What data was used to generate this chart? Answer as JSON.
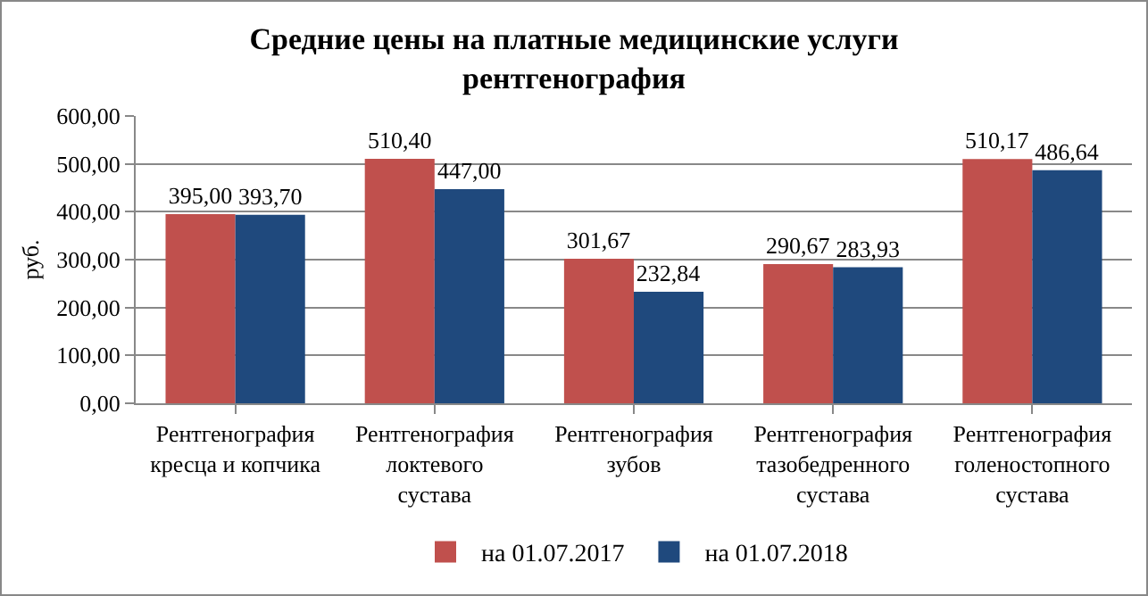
{
  "chart_data": {
    "type": "bar",
    "title": "Средние цены на платные медицинские услуги\nрентгенография",
    "ylabel": "руб.",
    "categories": [
      "Рентгенография\nкресца и копчика",
      "Рентгенография\nлоктевого\nсустава",
      "Рентгенография\nзубов",
      "Рентгенография\nтазобедренного\nсустава",
      "Рентгенография\nголеностопного\nсустава"
    ],
    "series": [
      {
        "name": "на 01.07.2017",
        "color": "#c0504d",
        "values": [
          395.0,
          510.4,
          301.67,
          290.67,
          510.17
        ],
        "value_labels": [
          "395,00",
          "510,40",
          "301,67",
          "290,67",
          "510,17"
        ]
      },
      {
        "name": "на 01.07.2018",
        "color": "#1f497d",
        "values": [
          393.7,
          447.0,
          232.84,
          283.93,
          486.64
        ],
        "value_labels": [
          "393,70",
          "447,00",
          "232,84",
          "283,93",
          "486,64"
        ]
      }
    ],
    "ylim": [
      0,
      600
    ],
    "yticks": [
      {
        "value": 0,
        "label": "0,00"
      },
      {
        "value": 100,
        "label": "100,00"
      },
      {
        "value": 200,
        "label": "200,00"
      },
      {
        "value": 300,
        "label": "300,00"
      },
      {
        "value": 400,
        "label": "400,00"
      },
      {
        "value": 500,
        "label": "500,00"
      },
      {
        "value": 600,
        "label": "600,00"
      }
    ],
    "grid": true,
    "legend": "bottom"
  }
}
